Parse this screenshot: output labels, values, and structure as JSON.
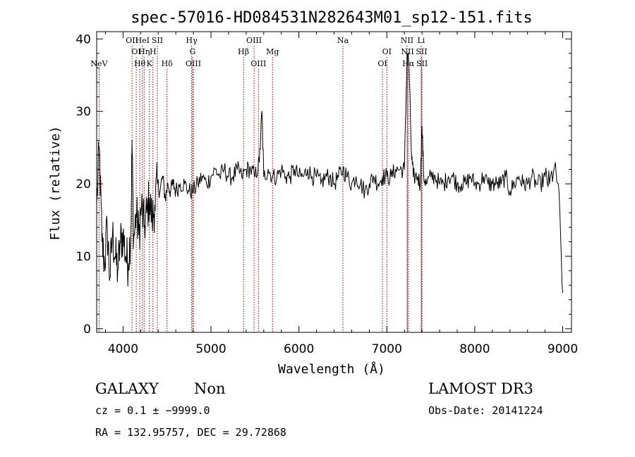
{
  "chart_data": {
    "type": "line",
    "title": "spec-57016-HD084531N282643M01_sp12-151.fits",
    "xlabel": "Wavelength (Å)",
    "ylabel": "Flux (relative)",
    "xlim": [
      3700,
      9100
    ],
    "ylim": [
      -0.5,
      41
    ],
    "x_ticks": [
      4000,
      5000,
      6000,
      7000,
      8000,
      9000
    ],
    "y_ticks": [
      0,
      10,
      20,
      30,
      40
    ],
    "grid": false,
    "series": [
      {
        "values_x": [
          3700,
          3730,
          3760,
          3790,
          3820,
          3850,
          3880,
          3910,
          3940,
          3970,
          4000,
          4030,
          4060,
          4090,
          4102,
          4120,
          4150,
          4180,
          4210,
          4240,
          4270,
          4300,
          4330,
          4360,
          4390,
          4420,
          4450,
          4480,
          4510,
          4540,
          4570,
          4600,
          4650,
          4700,
          4750,
          4800,
          4850,
          4900,
          4950,
          5000,
          5050,
          5100,
          5150,
          5200,
          5250,
          5300,
          5350,
          5400,
          5450,
          5500,
          5550,
          5580,
          5600,
          5650,
          5700,
          5750,
          5800,
          5850,
          5900,
          5950,
          6000,
          6050,
          6100,
          6150,
          6200,
          6250,
          6300,
          6350,
          6400,
          6450,
          6500,
          6550,
          6600,
          6650,
          6700,
          6750,
          6800,
          6850,
          6900,
          6950,
          7000,
          7050,
          7100,
          7150,
          7200,
          7230,
          7250,
          7280,
          7300,
          7350,
          7380,
          7400,
          7420,
          7450,
          7500,
          7550,
          7600,
          7650,
          7700,
          7750,
          7800,
          7850,
          7900,
          7950,
          8000,
          8050,
          8100,
          8150,
          8200,
          8250,
          8300,
          8350,
          8400,
          8450,
          8500,
          8550,
          8600,
          8650,
          8700,
          8750,
          8800,
          8850,
          8900,
          8950,
          9000
        ],
        "values_y": [
          17,
          25,
          12,
          9,
          14,
          7,
          13,
          10,
          8,
          12,
          13,
          10,
          9,
          14,
          26,
          12,
          16,
          13,
          17,
          14,
          16,
          18,
          15,
          17,
          20,
          19,
          21,
          18,
          20,
          19,
          20,
          19,
          20,
          20,
          19,
          19,
          20,
          21,
          20,
          21,
          22,
          21,
          22,
          21,
          21,
          22,
          21,
          22,
          22,
          21,
          23,
          30,
          21,
          22,
          21,
          21,
          22,
          21,
          21,
          22,
          21,
          21,
          22,
          21,
          21,
          20,
          21,
          21,
          20,
          21,
          22,
          21,
          20,
          21,
          20,
          19,
          20,
          21,
          20,
          21,
          21,
          21,
          22,
          22,
          22,
          38,
          37,
          24,
          21,
          21,
          20,
          28,
          21,
          20,
          21,
          21,
          20,
          20,
          21,
          21,
          20,
          20,
          20,
          21,
          20,
          20,
          21,
          20,
          20,
          20,
          20,
          21,
          19,
          20,
          21,
          20,
          20,
          21,
          20,
          20,
          21,
          20,
          22,
          20,
          5
        ]
      }
    ],
    "emission_lines": [
      {
        "wavelength": 3727,
        "label": "NeV",
        "row": 3
      },
      {
        "wavelength": 4102,
        "label": "OII",
        "row": 1
      },
      {
        "wavelength": 4150,
        "label": "OI",
        "row": 2
      },
      {
        "wavelength": 4190,
        "label": "Hθ",
        "row": 3
      },
      {
        "wavelength": 4220,
        "label": "HeI",
        "row": 1
      },
      {
        "wavelength": 4240,
        "label": "Hη",
        "row": 2
      },
      {
        "wavelength": 4300,
        "label": "K",
        "row": 3
      },
      {
        "wavelength": 4340,
        "label": "H",
        "row": 2
      },
      {
        "wavelength": 4390,
        "label": "SII",
        "row": 1
      },
      {
        "wavelength": 4500,
        "label": "Hδ",
        "row": 3
      },
      {
        "wavelength": 4780,
        "label": "Hγ",
        "row": 1
      },
      {
        "wavelength": 4790,
        "label": "G",
        "row": 2
      },
      {
        "wavelength": 4800,
        "label": "OIII",
        "row": 3
      },
      {
        "wavelength": 5370,
        "label": "Hβ",
        "row": 2
      },
      {
        "wavelength": 5490,
        "label": "OIII",
        "row": 1
      },
      {
        "wavelength": 5540,
        "label": "OIII",
        "row": 3
      },
      {
        "wavelength": 5700,
        "label": "Mg",
        "row": 2
      },
      {
        "wavelength": 6500,
        "label": "Na",
        "row": 1
      },
      {
        "wavelength": 6950,
        "label": "OI",
        "row": 3
      },
      {
        "wavelength": 7000,
        "label": "OI",
        "row": 2
      },
      {
        "wavelength": 7230,
        "label": "NII",
        "row": 1
      },
      {
        "wavelength": 7235,
        "label": "NII",
        "row": 2
      },
      {
        "wavelength": 7245,
        "label": "Hα",
        "row": 3
      },
      {
        "wavelength": 7390,
        "label": "Li",
        "row": 1
      },
      {
        "wavelength": 7395,
        "label": "SII",
        "row": 2
      },
      {
        "wavelength": 7400,
        "label": "SII",
        "row": 3
      }
    ]
  },
  "info": {
    "classification": "GALAXY",
    "subclass": "Non",
    "survey": "LAMOST DR3",
    "cz": "cz = 0.1 ± −9999.0",
    "obs_date": "Obs-Date: 20141224",
    "coords": "RA = 132.95757, DEC =  29.72868"
  },
  "colors": {
    "spectrum": "#000000",
    "line_markers": "#8b0000"
  }
}
